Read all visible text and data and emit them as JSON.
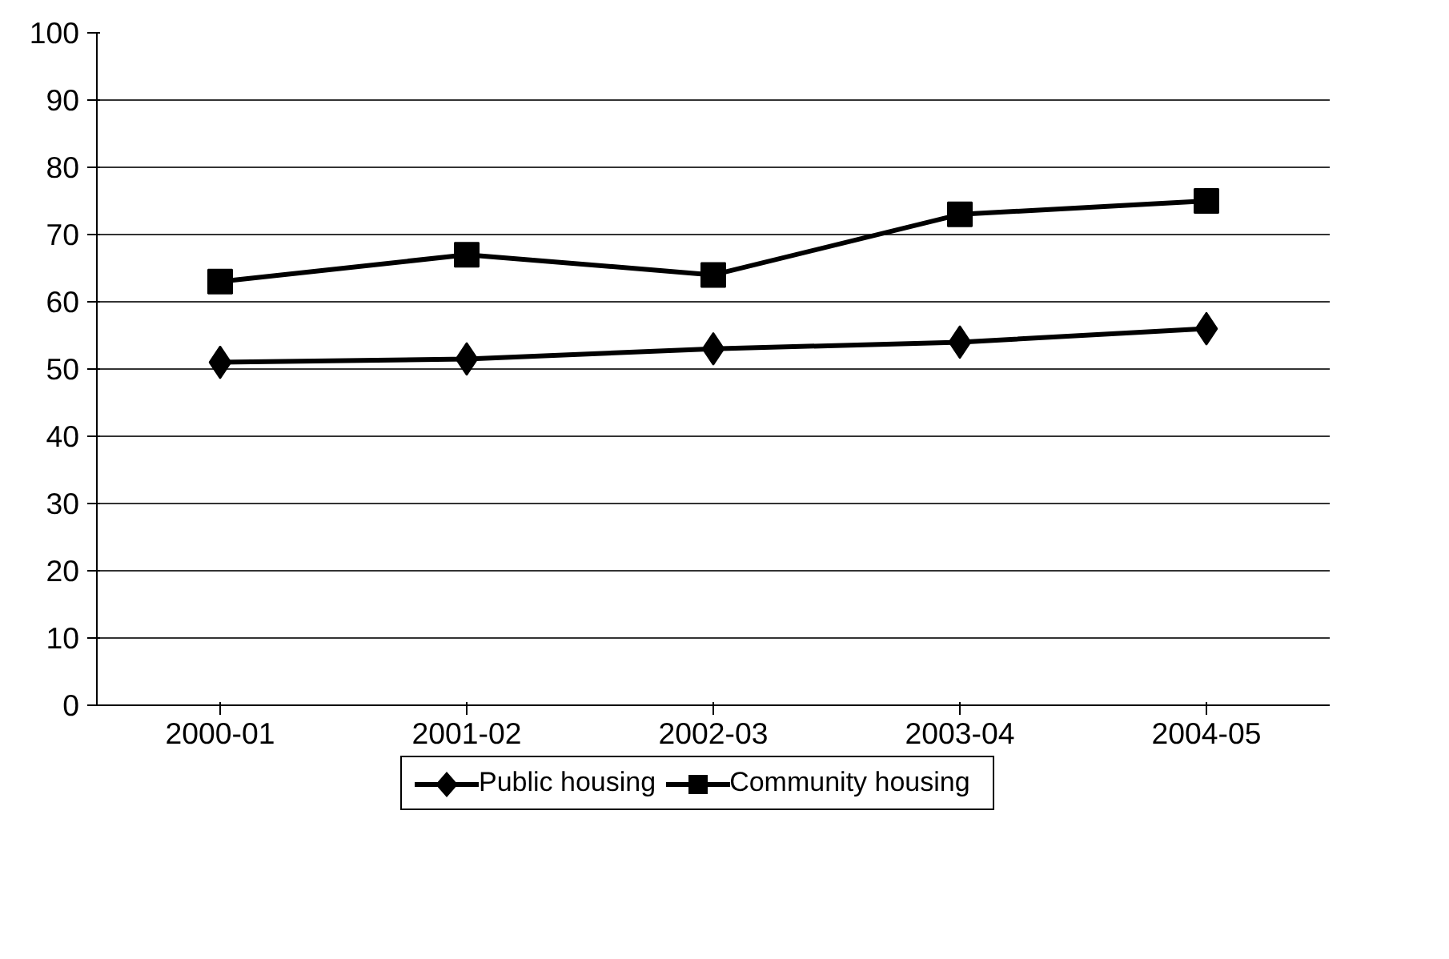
{
  "chart_data": {
    "type": "line",
    "categories": [
      "2000-01",
      "2001-02",
      "2002-03",
      "2003-04",
      "2004-05"
    ],
    "series": [
      {
        "name": "Public housing",
        "color": "#000000",
        "marker": "diamond",
        "values": [
          51,
          51.5,
          53,
          54,
          56
        ]
      },
      {
        "name": "Community housing",
        "color": "#000000",
        "marker": "square",
        "values": [
          63,
          67,
          64,
          73,
          75
        ]
      }
    ],
    "ylim": [
      0,
      100
    ],
    "yticks": [
      0,
      10,
      20,
      30,
      40,
      50,
      60,
      70,
      80,
      90,
      100
    ],
    "grid": "y",
    "legend": "bottom",
    "line_style": "solid"
  }
}
